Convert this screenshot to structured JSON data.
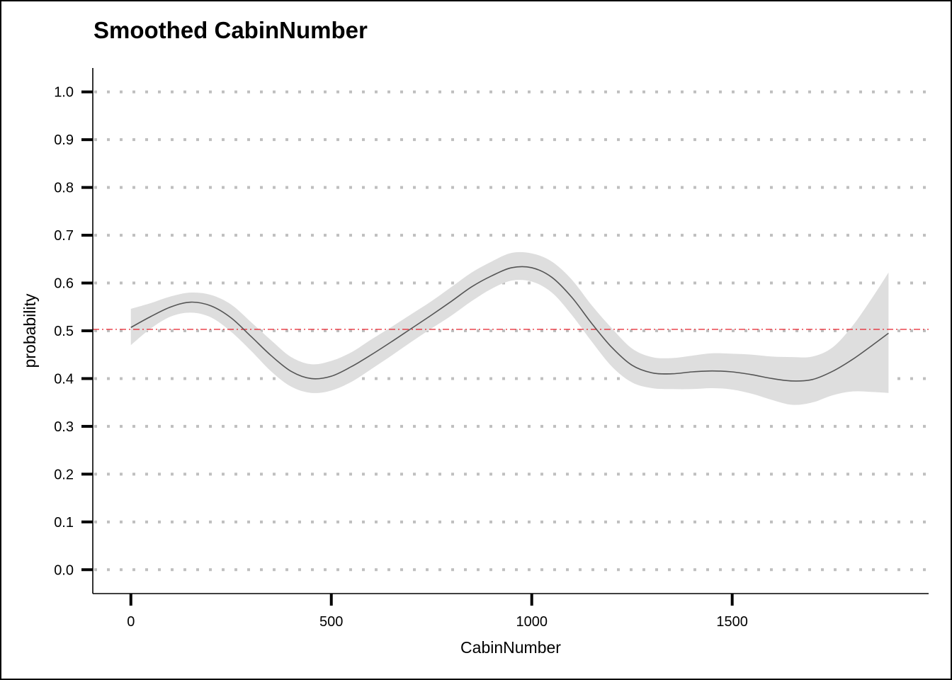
{
  "chart_data": {
    "type": "line",
    "title": "Smoothed CabinNumber",
    "xlabel": "CabinNumber",
    "ylabel": "probability",
    "xlim": [
      -95,
      1990
    ],
    "ylim": [
      -0.05,
      1.05
    ],
    "xticks": [
      0,
      500,
      1000,
      1500
    ],
    "xtick_labels": [
      "0",
      "500",
      "1000",
      "1500"
    ],
    "yticks": [
      0.0,
      0.1,
      0.2,
      0.3,
      0.4,
      0.5,
      0.6,
      0.7,
      0.8,
      0.9,
      1.0
    ],
    "ytick_labels": [
      "0.0",
      "0.1",
      "0.2",
      "0.3",
      "0.4",
      "0.5",
      "0.6",
      "0.7",
      "0.8",
      "0.9",
      "1.0"
    ],
    "grid": "horizontal dotted",
    "reference_line": {
      "y": 0.503,
      "style": "dash-dot",
      "color": "#e8202a"
    },
    "series": [
      {
        "x": [
          0,
          50,
          100,
          150,
          200,
          250,
          300,
          350,
          400,
          450,
          500,
          550,
          600,
          650,
          700,
          750,
          800,
          850,
          900,
          950,
          1000,
          1050,
          1100,
          1150,
          1200,
          1250,
          1300,
          1350,
          1400,
          1450,
          1500,
          1550,
          1600,
          1650,
          1700,
          1750,
          1800,
          1850,
          1890
        ],
        "y": [
          0.507,
          0.53,
          0.55,
          0.56,
          0.552,
          0.527,
          0.488,
          0.448,
          0.415,
          0.4,
          0.405,
          0.425,
          0.45,
          0.477,
          0.505,
          0.533,
          0.562,
          0.592,
          0.615,
          0.632,
          0.632,
          0.612,
          0.57,
          0.515,
          0.465,
          0.428,
          0.412,
          0.41,
          0.414,
          0.416,
          0.414,
          0.408,
          0.4,
          0.395,
          0.398,
          0.415,
          0.44,
          0.47,
          0.495
        ],
        "lower": [
          0.47,
          0.505,
          0.53,
          0.538,
          0.528,
          0.498,
          0.458,
          0.415,
          0.383,
          0.37,
          0.375,
          0.393,
          0.42,
          0.448,
          0.477,
          0.505,
          0.532,
          0.562,
          0.588,
          0.605,
          0.603,
          0.58,
          0.533,
          0.477,
          0.425,
          0.392,
          0.38,
          0.378,
          0.378,
          0.38,
          0.377,
          0.368,
          0.355,
          0.345,
          0.35,
          0.365,
          0.373,
          0.372,
          0.37
        ],
        "upper": [
          0.546,
          0.558,
          0.572,
          0.58,
          0.575,
          0.555,
          0.518,
          0.48,
          0.445,
          0.43,
          0.437,
          0.455,
          0.482,
          0.508,
          0.535,
          0.562,
          0.592,
          0.622,
          0.645,
          0.663,
          0.662,
          0.645,
          0.607,
          0.553,
          0.505,
          0.463,
          0.445,
          0.443,
          0.448,
          0.453,
          0.452,
          0.45,
          0.446,
          0.445,
          0.446,
          0.465,
          0.51,
          0.57,
          0.622
        ]
      }
    ],
    "colors": {
      "line": "#555555",
      "ribbon": "#dedede",
      "grid": "#bfbfbf",
      "axis": "#000000"
    }
  }
}
